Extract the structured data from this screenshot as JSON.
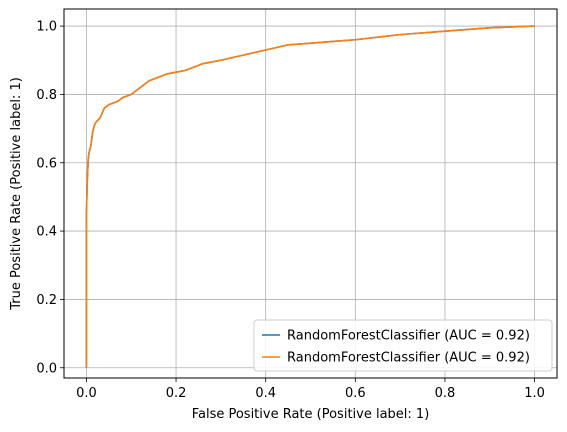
{
  "chart_data": {
    "type": "line",
    "xlabel": "False Positive Rate (Positive label: 1)",
    "ylabel": "True Positive Rate (Positive label: 1)",
    "xlim": [
      -0.05,
      1.05
    ],
    "ylim": [
      -0.03,
      1.05
    ],
    "xticks": [
      0.0,
      0.2,
      0.4,
      0.6,
      0.8,
      1.0
    ],
    "yticks": [
      0.0,
      0.2,
      0.4,
      0.6,
      0.8,
      1.0
    ],
    "xtick_labels": [
      "0.0",
      "0.2",
      "0.4",
      "0.6",
      "0.8",
      "1.0"
    ],
    "ytick_labels": [
      "0.0",
      "0.2",
      "0.4",
      "0.6",
      "0.8",
      "1.0"
    ],
    "grid": true,
    "legend_position": "lower-right",
    "series": [
      {
        "name": "RandomForestClassifier (AUC = 0.92)",
        "color": "#1f77b4",
        "x": [
          0.0,
          0.0,
          0.002,
          0.004,
          0.006,
          0.01,
          0.014,
          0.018,
          0.022,
          0.03,
          0.04,
          0.05,
          0.06,
          0.07,
          0.08,
          0.1,
          0.12,
          0.14,
          0.16,
          0.18,
          0.2,
          0.22,
          0.24,
          0.26,
          0.3,
          0.35,
          0.4,
          0.45,
          0.5,
          0.55,
          0.6,
          0.7,
          0.8,
          0.9,
          1.0
        ],
        "y": [
          0.0,
          0.45,
          0.55,
          0.61,
          0.63,
          0.65,
          0.69,
          0.71,
          0.72,
          0.73,
          0.76,
          0.77,
          0.775,
          0.78,
          0.79,
          0.8,
          0.82,
          0.84,
          0.85,
          0.86,
          0.865,
          0.87,
          0.88,
          0.89,
          0.9,
          0.915,
          0.93,
          0.945,
          0.95,
          0.955,
          0.96,
          0.975,
          0.985,
          0.995,
          1.0
        ]
      },
      {
        "name": "RandomForestClassifier (AUC = 0.92)",
        "color": "#ff7f0e",
        "x": [
          0.0,
          0.0,
          0.002,
          0.004,
          0.006,
          0.01,
          0.014,
          0.018,
          0.022,
          0.03,
          0.04,
          0.05,
          0.06,
          0.07,
          0.08,
          0.1,
          0.12,
          0.14,
          0.16,
          0.18,
          0.2,
          0.22,
          0.24,
          0.26,
          0.3,
          0.35,
          0.4,
          0.45,
          0.5,
          0.55,
          0.6,
          0.7,
          0.8,
          0.9,
          1.0
        ],
        "y": [
          0.0,
          0.45,
          0.55,
          0.61,
          0.63,
          0.65,
          0.69,
          0.71,
          0.72,
          0.73,
          0.76,
          0.77,
          0.775,
          0.78,
          0.79,
          0.8,
          0.82,
          0.84,
          0.85,
          0.86,
          0.865,
          0.87,
          0.88,
          0.89,
          0.9,
          0.915,
          0.93,
          0.945,
          0.95,
          0.955,
          0.96,
          0.975,
          0.985,
          0.995,
          1.0
        ]
      }
    ]
  }
}
